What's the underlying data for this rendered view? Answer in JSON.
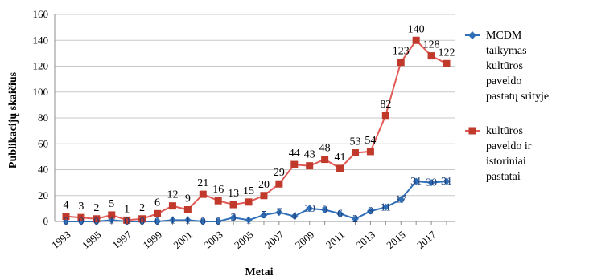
{
  "chart_data": {
    "type": "line",
    "title": "",
    "xlabel": "Metai",
    "ylabel": "Publikacijų skaičius",
    "ylim": [
      0,
      160
    ],
    "yticks": [
      0,
      20,
      40,
      60,
      80,
      100,
      120,
      140,
      160
    ],
    "grid": "horizontal",
    "legend_position": "right",
    "x": [
      1993,
      1994,
      1995,
      1996,
      1997,
      1998,
      1999,
      2000,
      2001,
      2002,
      2003,
      2004,
      2005,
      2006,
      2007,
      2008,
      2009,
      2010,
      2011,
      2012,
      2013,
      2014,
      2015,
      2016,
      2017,
      2018
    ],
    "xtick_labels": [
      "1993",
      "1995",
      "1997",
      "1999",
      "2001",
      "2003",
      "2005",
      "2007",
      "2009",
      "2011",
      "2013",
      "2015",
      "2017"
    ],
    "series": [
      {
        "name": "MCDM taikymas kultūros paveldo pastatų srityje",
        "legend_lines": [
          "MCDM",
          "taikymas",
          "kultūros",
          "paveldo",
          "pastatų srityje"
        ],
        "color": "#2f6fb8",
        "marker": "diamond",
        "values": [
          0,
          0,
          0,
          1,
          0,
          0,
          0,
          1,
          1,
          0,
          0,
          3,
          1,
          5,
          7,
          4,
          10,
          9,
          6,
          2,
          8,
          11,
          17,
          31,
          30,
          31
        ]
      },
      {
        "name": "kultūros paveldo ir istoriniai pastatai",
        "legend_lines": [
          "kultūros",
          "paveldo ir",
          "istoriniai",
          "pastatai"
        ],
        "color": "#e05a56",
        "marker_color": "#c0392b",
        "marker": "square",
        "values": [
          4,
          3,
          2,
          5,
          1,
          2,
          6,
          12,
          9,
          21,
          16,
          13,
          15,
          20,
          29,
          44,
          43,
          48,
          41,
          53,
          54,
          82,
          123,
          140,
          128,
          122
        ]
      }
    ]
  }
}
